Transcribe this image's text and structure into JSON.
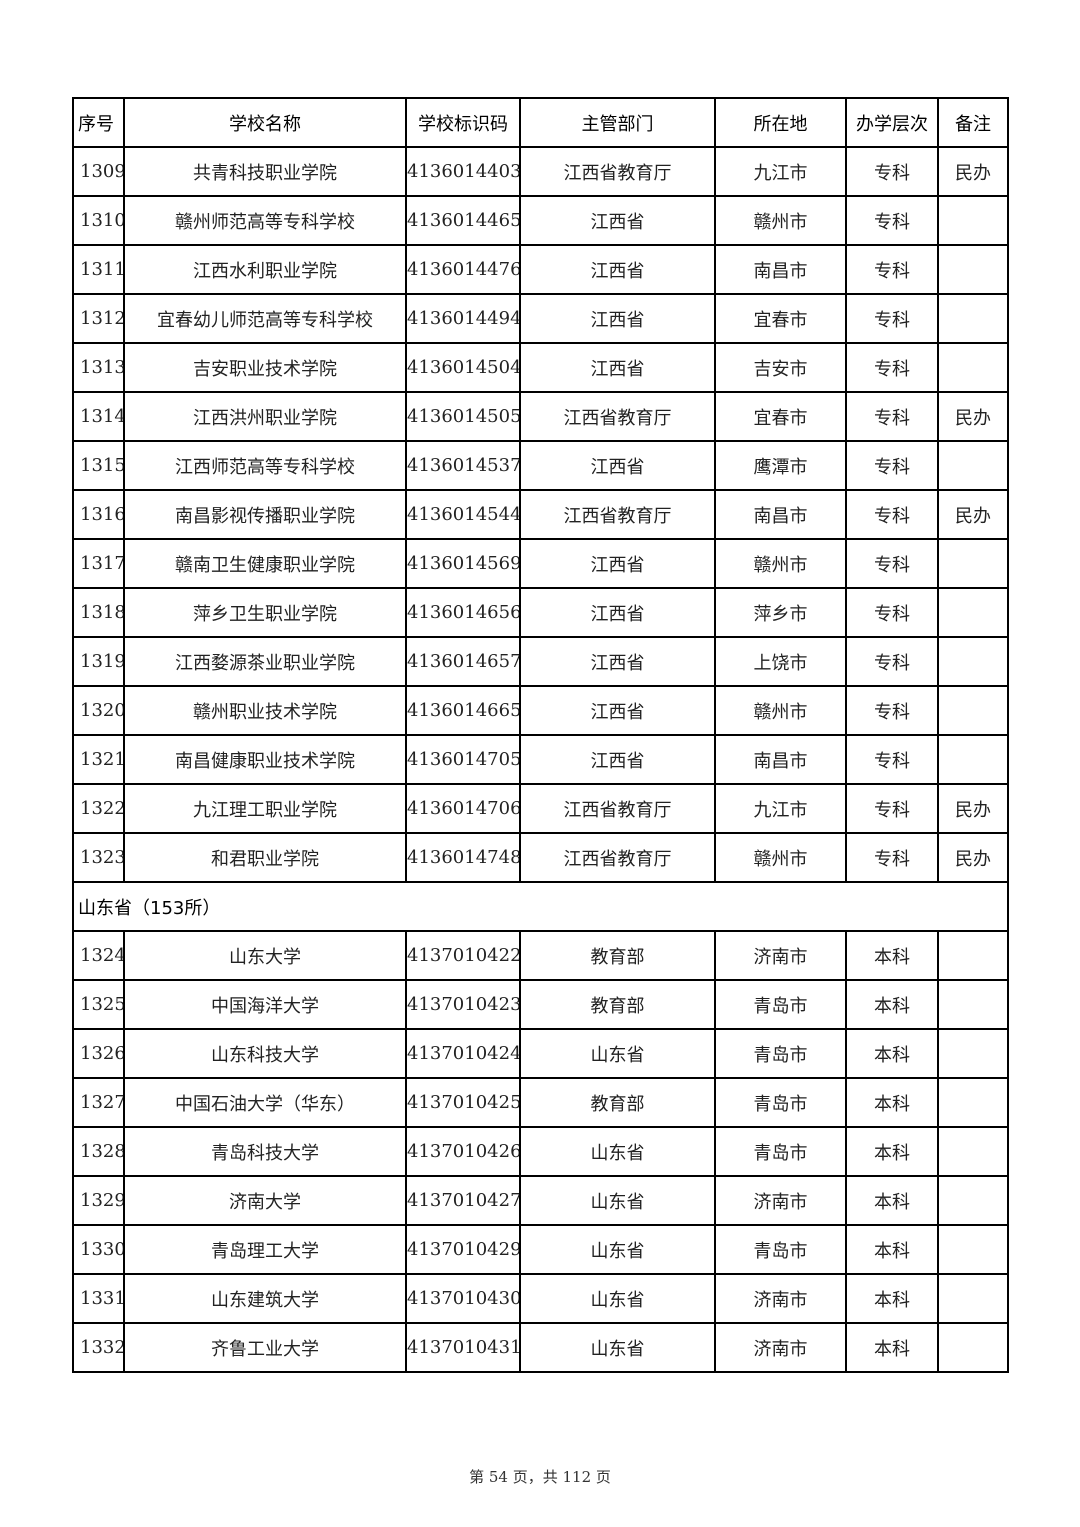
{
  "headers": [
    "序号",
    "学校名称",
    "学校标识码",
    "主管部门",
    "所在地",
    "办学层次",
    "备注"
  ],
  "rows_a": [
    [
      "1309",
      "共青科技职业学院",
      "4136014403",
      "江西省教育厅",
      "九江市",
      "专科",
      "民办"
    ],
    [
      "1310",
      "赣州师范高等专科学校",
      "4136014465",
      "江西省",
      "赣州市",
      "专科",
      ""
    ],
    [
      "1311",
      "江西水利职业学院",
      "4136014476",
      "江西省",
      "南昌市",
      "专科",
      ""
    ],
    [
      "1312",
      "宜春幼儿师范高等专科学校",
      "4136014494",
      "江西省",
      "宜春市",
      "专科",
      ""
    ],
    [
      "1313",
      "吉安职业技术学院",
      "4136014504",
      "江西省",
      "吉安市",
      "专科",
      ""
    ],
    [
      "1314",
      "江西洪州职业学院",
      "4136014505",
      "江西省教育厅",
      "宜春市",
      "专科",
      "民办"
    ],
    [
      "1315",
      "江西师范高等专科学校",
      "4136014537",
      "江西省",
      "鹰潭市",
      "专科",
      ""
    ],
    [
      "1316",
      "南昌影视传播职业学院",
      "4136014544",
      "江西省教育厅",
      "南昌市",
      "专科",
      "民办"
    ],
    [
      "1317",
      "赣南卫生健康职业学院",
      "4136014569",
      "江西省",
      "赣州市",
      "专科",
      ""
    ],
    [
      "1318",
      "萍乡卫生职业学院",
      "4136014656",
      "江西省",
      "萍乡市",
      "专科",
      ""
    ],
    [
      "1319",
      "江西婺源茶业职业学院",
      "4136014657",
      "江西省",
      "上饶市",
      "专科",
      ""
    ],
    [
      "1320",
      "赣州职业技术学院",
      "4136014665",
      "江西省",
      "赣州市",
      "专科",
      ""
    ],
    [
      "1321",
      "南昌健康职业技术学院",
      "4136014705",
      "江西省",
      "南昌市",
      "专科",
      ""
    ],
    [
      "1322",
      "九江理工职业学院",
      "4136014706",
      "江西省教育厅",
      "九江市",
      "专科",
      "民办"
    ],
    [
      "1323",
      "和君职业学院",
      "4136014748",
      "江西省教育厅",
      "赣州市",
      "专科",
      "民办"
    ]
  ],
  "section": "山东省（153所）",
  "rows_b": [
    [
      "1324",
      "山东大学",
      "4137010422",
      "教育部",
      "济南市",
      "本科",
      ""
    ],
    [
      "1325",
      "中国海洋大学",
      "4137010423",
      "教育部",
      "青岛市",
      "本科",
      ""
    ],
    [
      "1326",
      "山东科技大学",
      "4137010424",
      "山东省",
      "青岛市",
      "本科",
      ""
    ],
    [
      "1327",
      "中国石油大学（华东）",
      "4137010425",
      "教育部",
      "青岛市",
      "本科",
      ""
    ],
    [
      "1328",
      "青岛科技大学",
      "4137010426",
      "山东省",
      "青岛市",
      "本科",
      ""
    ],
    [
      "1329",
      "济南大学",
      "4137010427",
      "山东省",
      "济南市",
      "本科",
      ""
    ],
    [
      "1330",
      "青岛理工大学",
      "4137010429",
      "山东省",
      "青岛市",
      "本科",
      ""
    ],
    [
      "1331",
      "山东建筑大学",
      "4137010430",
      "山东省",
      "济南市",
      "本科",
      ""
    ],
    [
      "1332",
      "齐鲁工业大学",
      "4137010431",
      "山东省",
      "济南市",
      "本科",
      ""
    ]
  ],
  "footer": "第 54 页，共 112 页"
}
